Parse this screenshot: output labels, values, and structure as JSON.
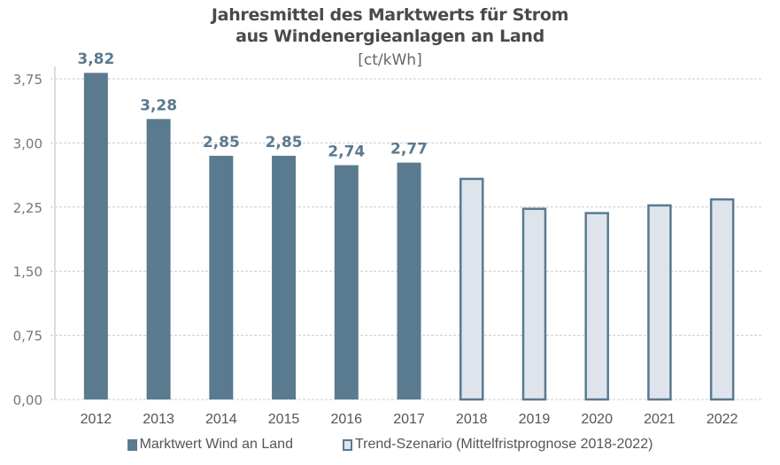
{
  "chart_data": {
    "type": "bar",
    "title": "Jahresmittel des Marktwerts für Strom",
    "subtitle": "aus Windenergieanlagen an Land",
    "unit": "[ct/kWh]",
    "xlabel": "",
    "ylabel": "",
    "ylim": [
      0,
      4.0
    ],
    "yticks": [
      0,
      0.75,
      1.5,
      2.25,
      3.0,
      3.75
    ],
    "ytick_labels": [
      "0,00",
      "0,75",
      "1,50",
      "2,25",
      "3,00",
      "3,75"
    ],
    "grid": true,
    "legend_position": "bottom",
    "categories": [
      "2012",
      "2013",
      "2014",
      "2015",
      "2016",
      "2017",
      "2018",
      "2019",
      "2020",
      "2021",
      "2022"
    ],
    "series": [
      {
        "name": "Marktwert Wind an Land",
        "color": "#5a7a8f",
        "style": "filled",
        "values": [
          3.82,
          3.28,
          2.85,
          2.85,
          2.74,
          2.77,
          null,
          null,
          null,
          null,
          null
        ],
        "labels": [
          "3,82",
          "3,28",
          "2,85",
          "2,85",
          "2,74",
          "2,77",
          "",
          "",
          "",
          "",
          ""
        ]
      },
      {
        "name": "Trend-Szenario (Mittelfristprognose 2018-2022)",
        "color": "#dfe4ec",
        "stroke": "#5a7a8f",
        "style": "outlined",
        "values": [
          null,
          null,
          null,
          null,
          null,
          null,
          2.59,
          2.24,
          2.19,
          2.28,
          2.35
        ]
      }
    ]
  }
}
